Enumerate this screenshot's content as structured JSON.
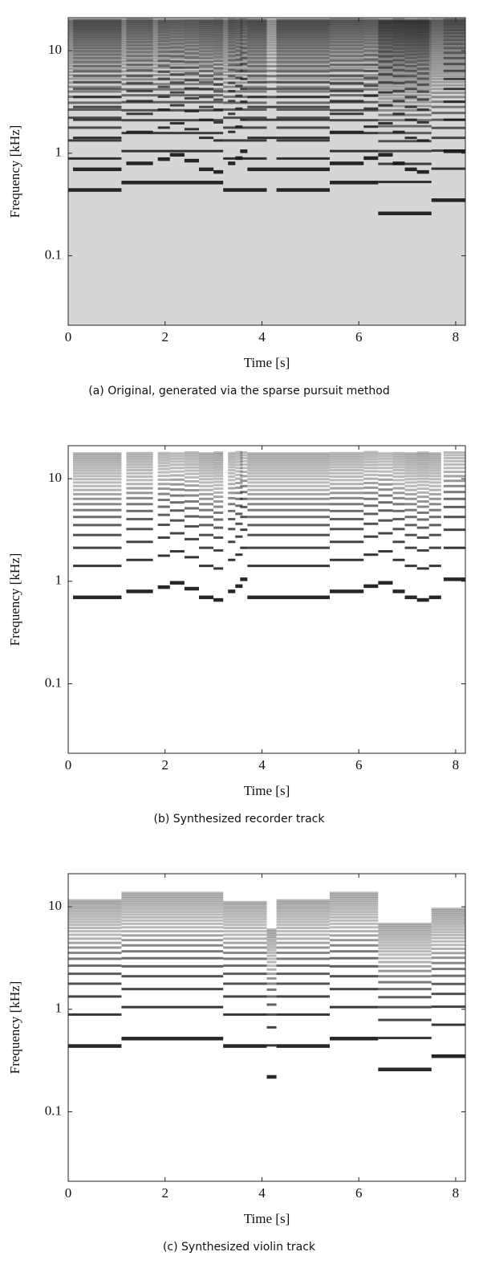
{
  "chart_data": [
    {
      "type": "spectrogram",
      "caption": "(a) Original, generated via the sparse pursuit method",
      "xlabel": "Time [s]",
      "ylabel": "Frequency [kHz]",
      "xlim": [
        0,
        8.2
      ],
      "ylim": [
        0.021,
        21
      ],
      "xticks": [
        0,
        2,
        4,
        6,
        8
      ],
      "yticks": [
        0.1,
        1,
        10
      ],
      "log_y": true,
      "color": "#1a1a1a",
      "background": "#d6d6d6",
      "notes": [
        {
          "start": 0.1,
          "end": 1.1,
          "freq": 0.7,
          "max_freq": 20
        },
        {
          "start": 1.2,
          "end": 1.75,
          "freq": 0.8,
          "max_freq": 20
        },
        {
          "start": 1.85,
          "end": 2.1,
          "freq": 0.88,
          "max_freq": 20
        },
        {
          "start": 2.1,
          "end": 2.4,
          "freq": 0.97,
          "max_freq": 20
        },
        {
          "start": 2.4,
          "end": 2.7,
          "freq": 0.85,
          "max_freq": 20
        },
        {
          "start": 2.7,
          "end": 3.0,
          "freq": 0.7,
          "max_freq": 20
        },
        {
          "start": 3.0,
          "end": 3.2,
          "freq": 0.66,
          "max_freq": 20
        },
        {
          "start": 3.3,
          "end": 3.45,
          "freq": 0.8,
          "max_freq": 20
        },
        {
          "start": 3.45,
          "end": 3.6,
          "freq": 0.9,
          "max_freq": 20
        },
        {
          "start": 3.55,
          "end": 3.7,
          "freq": 1.05,
          "max_freq": 20
        },
        {
          "start": 3.7,
          "end": 5.4,
          "freq": 0.7,
          "max_freq": 20
        },
        {
          "start": 5.4,
          "end": 6.1,
          "freq": 0.8,
          "max_freq": 20
        },
        {
          "start": 6.1,
          "end": 6.4,
          "freq": 0.9,
          "max_freq": 20
        },
        {
          "start": 6.4,
          "end": 6.7,
          "freq": 0.97,
          "max_freq": 20
        },
        {
          "start": 6.7,
          "end": 6.95,
          "freq": 0.8,
          "max_freq": 20
        },
        {
          "start": 6.95,
          "end": 7.2,
          "freq": 0.7,
          "max_freq": 20
        },
        {
          "start": 7.2,
          "end": 7.45,
          "freq": 0.66,
          "max_freq": 20
        },
        {
          "start": 7.75,
          "end": 8.2,
          "freq": 1.05,
          "max_freq": 20
        },
        {
          "start": 0,
          "end": 1.1,
          "freq": 0.44,
          "max_freq": 20
        },
        {
          "start": 1.1,
          "end": 3.2,
          "freq": 0.52,
          "max_freq": 20
        },
        {
          "start": 3.2,
          "end": 4.1,
          "freq": 0.44,
          "max_freq": 20
        },
        {
          "start": 4.3,
          "end": 5.4,
          "freq": 0.44,
          "max_freq": 20
        },
        {
          "start": 5.4,
          "end": 6.4,
          "freq": 0.52,
          "max_freq": 20
        },
        {
          "start": 6.4,
          "end": 7.5,
          "freq": 0.26,
          "max_freq": 20
        },
        {
          "start": 7.5,
          "end": 8.2,
          "freq": 0.35,
          "max_freq": 20
        }
      ]
    },
    {
      "type": "spectrogram",
      "caption": "(b) Synthesized recorder track",
      "xlabel": "Time [s]",
      "ylabel": "Frequency [kHz]",
      "xlim": [
        0,
        8.2
      ],
      "ylim": [
        0.021,
        21
      ],
      "xticks": [
        0,
        2,
        4,
        6,
        8
      ],
      "yticks": [
        0.1,
        1,
        10
      ],
      "log_y": true,
      "color": "#1a1a1a",
      "notes": [
        {
          "start": 0.1,
          "end": 1.1,
          "freq": 0.7,
          "max_freq": 18
        },
        {
          "start": 1.2,
          "end": 1.75,
          "freq": 0.8,
          "max_freq": 18
        },
        {
          "start": 1.85,
          "end": 2.1,
          "freq": 0.88,
          "max_freq": 18
        },
        {
          "start": 2.1,
          "end": 2.4,
          "freq": 0.97,
          "max_freq": 18
        },
        {
          "start": 2.4,
          "end": 2.7,
          "freq": 0.85,
          "max_freq": 18
        },
        {
          "start": 2.7,
          "end": 3.0,
          "freq": 0.7,
          "max_freq": 18
        },
        {
          "start": 3.0,
          "end": 3.2,
          "freq": 0.66,
          "max_freq": 18
        },
        {
          "start": 3.3,
          "end": 3.45,
          "freq": 0.8,
          "max_freq": 18
        },
        {
          "start": 3.45,
          "end": 3.6,
          "freq": 0.9,
          "max_freq": 18
        },
        {
          "start": 3.55,
          "end": 3.7,
          "freq": 1.05,
          "max_freq": 18
        },
        {
          "start": 3.7,
          "end": 5.4,
          "freq": 0.7,
          "max_freq": 18
        },
        {
          "start": 5.4,
          "end": 6.1,
          "freq": 0.8,
          "max_freq": 18
        },
        {
          "start": 6.1,
          "end": 6.4,
          "freq": 0.9,
          "max_freq": 18
        },
        {
          "start": 6.4,
          "end": 6.7,
          "freq": 0.97,
          "max_freq": 18
        },
        {
          "start": 6.7,
          "end": 6.95,
          "freq": 0.8,
          "max_freq": 18
        },
        {
          "start": 6.95,
          "end": 7.2,
          "freq": 0.7,
          "max_freq": 18
        },
        {
          "start": 7.2,
          "end": 7.45,
          "freq": 0.66,
          "max_freq": 18
        },
        {
          "start": 7.45,
          "end": 7.7,
          "freq": 0.7,
          "max_freq": 18
        },
        {
          "start": 7.75,
          "end": 8.2,
          "freq": 1.05,
          "max_freq": 18
        }
      ]
    },
    {
      "type": "spectrogram",
      "caption": "(c) Synthesized violin track",
      "xlabel": "Time [s]",
      "ylabel": "Frequency [kHz]",
      "xlim": [
        0,
        8.2
      ],
      "ylim": [
        0.021,
        21
      ],
      "xticks": [
        0,
        2,
        4,
        6,
        8
      ],
      "yticks": [
        0.1,
        1,
        10
      ],
      "log_y": true,
      "color": "#1a1a1a",
      "notes": [
        {
          "start": 0,
          "end": 1.1,
          "freq": 0.44,
          "max_freq": 11.5
        },
        {
          "start": 1.1,
          "end": 3.2,
          "freq": 0.52,
          "max_freq": 14
        },
        {
          "start": 3.2,
          "end": 4.1,
          "freq": 0.44,
          "max_freq": 11
        },
        {
          "start": 4.1,
          "end": 4.3,
          "freq": 0.22,
          "max_freq": 6
        },
        {
          "start": 4.3,
          "end": 5.4,
          "freq": 0.44,
          "max_freq": 11.5
        },
        {
          "start": 5.4,
          "end": 6.4,
          "freq": 0.52,
          "max_freq": 14
        },
        {
          "start": 6.4,
          "end": 7.5,
          "freq": 0.26,
          "max_freq": 7
        },
        {
          "start": 7.5,
          "end": 8.2,
          "freq": 0.35,
          "max_freq": 9.5
        }
      ]
    }
  ]
}
